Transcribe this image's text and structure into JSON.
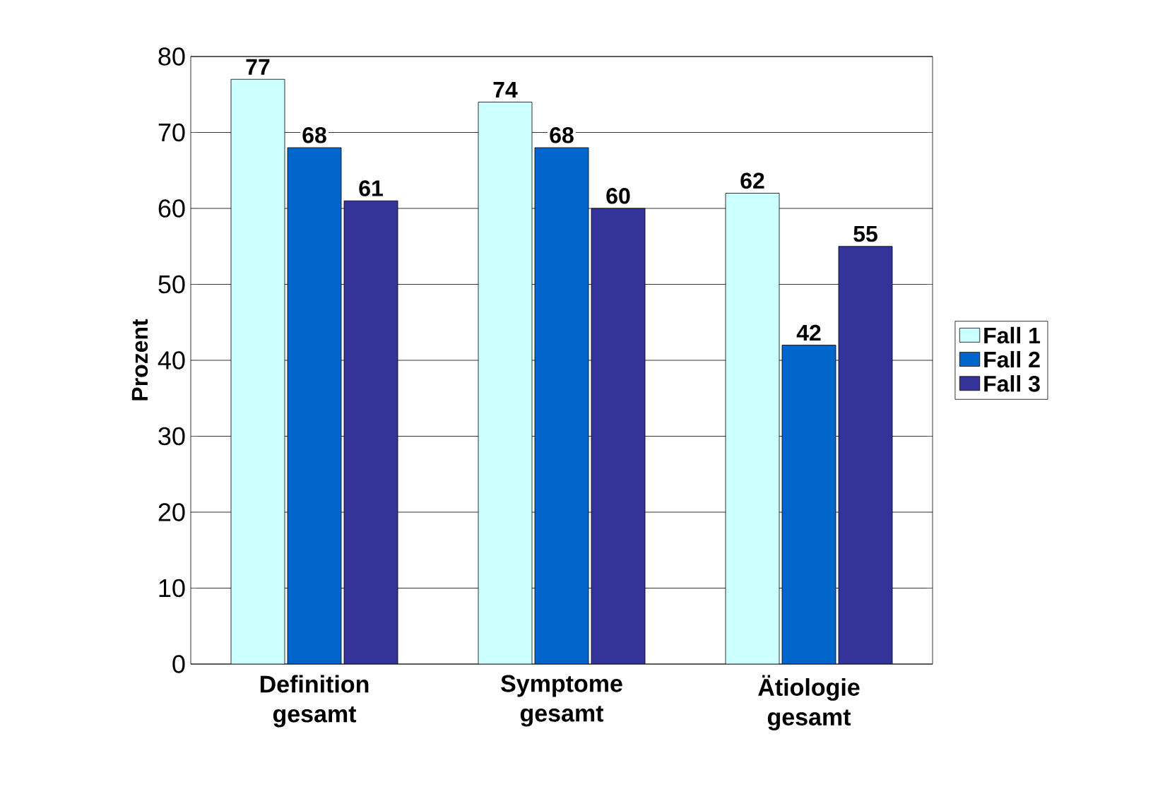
{
  "chart_data": {
    "type": "bar",
    "ylabel": "Prozent",
    "categories": [
      "Definition gesamt",
      "Symptome gesamt",
      "Ätiologie gesamt"
    ],
    "series": [
      {
        "name": "Fall 1",
        "color": "#ccffff",
        "values": [
          77,
          74,
          62
        ]
      },
      {
        "name": "Fall 2",
        "color": "#0066cc",
        "values": [
          68,
          68,
          42
        ]
      },
      {
        "name": "Fall 3",
        "color": "#333399",
        "values": [
          61,
          60,
          55
        ]
      }
    ],
    "ylim": [
      0,
      80
    ],
    "yticks": [
      0,
      10,
      20,
      30,
      40,
      50,
      60,
      70,
      80
    ],
    "grid": "y",
    "legend": "right",
    "data_labels": true
  }
}
